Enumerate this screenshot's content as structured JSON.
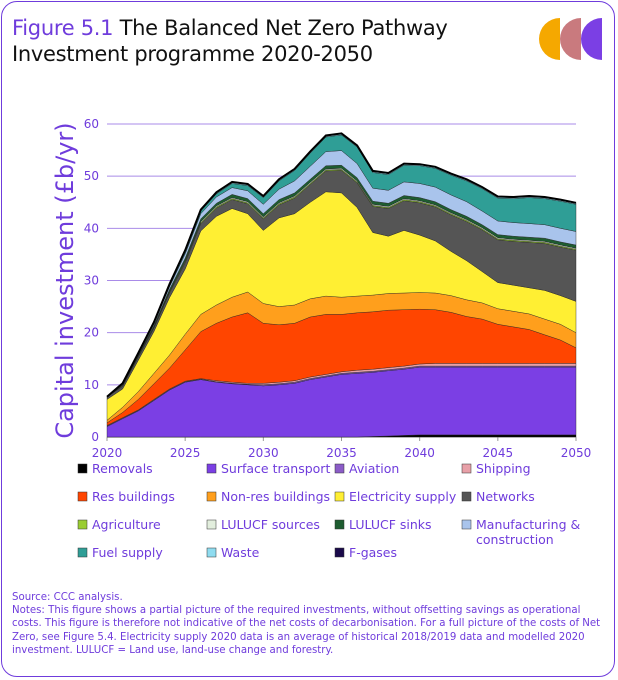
{
  "title": {
    "figure_label": "Figure 5.1",
    "line1": "The Balanced Net Zero Pathway",
    "line2": "Investment programme 2020-2050"
  },
  "source": {
    "line1": "Source: CCC analysis.",
    "line2": "Notes: This figure shows a partial picture of the required investments, without offsetting savings as operational costs. This figure is therefore not indicative of the net costs of decarbonisation. For a full picture of the costs of Net Zero, see Figure 5.4. Electricity supply 2020 data is an average of historical 2018/2019 data and modelled 2020 investment. LULUCF = Land use, land-use change and forestry."
  },
  "colors": {
    "accent": "#6f3cdc",
    "logo": [
      "#f5a800",
      "#c97a7e",
      "#7b3fe4"
    ]
  },
  "chart_data": {
    "type": "area",
    "stacked": true,
    "title": "The Balanced Net Zero Pathway Investment programme 2020-2050",
    "xlabel": "",
    "ylabel": "Capital investment (£b/yr)",
    "ylim": [
      0,
      60
    ],
    "yticks": [
      0,
      10,
      20,
      30,
      40,
      50,
      60
    ],
    "xticks": [
      2020,
      2025,
      2030,
      2035,
      2040,
      2045,
      2050
    ],
    "grid": true,
    "legend_position": "bottom",
    "x": [
      2020,
      2021,
      2022,
      2023,
      2024,
      2025,
      2026,
      2027,
      2028,
      2029,
      2030,
      2031,
      2032,
      2033,
      2034,
      2035,
      2036,
      2037,
      2038,
      2039,
      2040,
      2041,
      2042,
      2043,
      2044,
      2045,
      2046,
      2047,
      2048,
      2049,
      2050
    ],
    "series": [
      {
        "name": "Removals",
        "color": "#000000",
        "values": [
          0,
          0,
          0,
          0,
          0,
          0,
          0,
          0,
          0,
          0,
          0,
          0,
          0,
          0,
          0,
          0,
          0,
          0.1,
          0.2,
          0.3,
          0.4,
          0.4,
          0.4,
          0.4,
          0.4,
          0.4,
          0.4,
          0.4,
          0.4,
          0.4,
          0.4
        ]
      },
      {
        "name": "Surface transport",
        "color": "#7b3fe4",
        "values": [
          2,
          3.5,
          5,
          7,
          9,
          10.5,
          11,
          10.5,
          10.2,
          10,
          9.8,
          10,
          10.3,
          11,
          11.5,
          12,
          12.2,
          12.3,
          12.5,
          12.7,
          13,
          13,
          13,
          13,
          13,
          13,
          13,
          13,
          13,
          13,
          13
        ]
      },
      {
        "name": "Aviation",
        "color": "#8b5cc7",
        "values": [
          0.1,
          0.1,
          0.1,
          0.1,
          0.1,
          0.1,
          0.1,
          0.1,
          0.1,
          0.1,
          0.2,
          0.2,
          0.2,
          0.2,
          0.2,
          0.2,
          0.2,
          0.2,
          0.2,
          0.2,
          0.2,
          0.2,
          0.2,
          0.2,
          0.2,
          0.2,
          0.2,
          0.2,
          0.2,
          0.2,
          0.2
        ]
      },
      {
        "name": "Shipping",
        "color": "#e8a0a8",
        "values": [
          0.1,
          0.1,
          0.1,
          0.1,
          0.1,
          0.1,
          0.1,
          0.2,
          0.2,
          0.2,
          0.3,
          0.3,
          0.3,
          0.3,
          0.3,
          0.3,
          0.4,
          0.4,
          0.4,
          0.4,
          0.4,
          0.5,
          0.5,
          0.5,
          0.5,
          0.5,
          0.5,
          0.5,
          0.5,
          0.5,
          0.5
        ]
      },
      {
        "name": "Res buildings",
        "color": "#ff4500",
        "values": [
          0.5,
          1,
          2,
          3,
          4,
          6,
          9,
          11,
          12.5,
          13.5,
          11.5,
          11,
          11,
          11.5,
          11.5,
          11,
          11,
          11,
          11,
          10.8,
          10.5,
          10.3,
          9.8,
          9,
          8.5,
          7.5,
          7,
          6.5,
          5.5,
          4.5,
          3
        ]
      },
      {
        "name": "Non-res buildings",
        "color": "#ff9f1c",
        "values": [
          0.5,
          1,
          1.5,
          2,
          2.5,
          3,
          3.3,
          3.5,
          3.8,
          4,
          3.8,
          3.5,
          3.5,
          3.5,
          3.5,
          3.3,
          3.2,
          3.2,
          3.2,
          3.2,
          3.2,
          3.2,
          3.2,
          3.2,
          3.1,
          3,
          3,
          3,
          3,
          3,
          2.9
        ]
      },
      {
        "name": "Electricity supply",
        "color": "#ffef33",
        "values": [
          4,
          3.5,
          6,
          8,
          11,
          12.5,
          16,
          17,
          17,
          15,
          14,
          17,
          17.5,
          18.5,
          20,
          20,
          17,
          12,
          11,
          12,
          11,
          10,
          8.5,
          7.5,
          6,
          5,
          5,
          5,
          5.5,
          5.5,
          6
        ]
      },
      {
        "name": "Networks",
        "color": "#555555",
        "values": [
          0.5,
          0.5,
          0.6,
          0.7,
          0.9,
          1.2,
          1.4,
          1.6,
          1.7,
          1.9,
          2.2,
          2.5,
          3,
          3.4,
          4,
          4.3,
          4.7,
          5,
          5.3,
          5.7,
          6.2,
          6.5,
          7,
          7.5,
          8,
          8.2,
          8.4,
          8.7,
          9,
          9.3,
          9.8
        ]
      },
      {
        "name": "Agriculture",
        "color": "#9acd32",
        "values": [
          0,
          0.1,
          0.1,
          0.1,
          0.2,
          0.2,
          0.2,
          0.2,
          0.2,
          0.2,
          0.2,
          0.2,
          0.2,
          0.2,
          0.2,
          0.2,
          0.2,
          0.2,
          0.2,
          0.2,
          0.2,
          0.2,
          0.2,
          0.2,
          0.2,
          0.2,
          0.2,
          0.2,
          0.2,
          0.2,
          0.2
        ]
      },
      {
        "name": "LULUCF sources",
        "color": "#e2eedd",
        "values": [
          0,
          0.1,
          0.1,
          0.1,
          0.1,
          0.2,
          0.2,
          0.2,
          0.2,
          0.2,
          0.2,
          0.2,
          0.2,
          0.2,
          0.2,
          0.2,
          0.2,
          0.2,
          0.2,
          0.2,
          0.2,
          0.2,
          0.2,
          0.2,
          0.2,
          0.2,
          0.2,
          0.2,
          0.2,
          0.2,
          0.2
        ]
      },
      {
        "name": "LULUCF sinks",
        "color": "#1e5c30",
        "values": [
          0,
          0.1,
          0.2,
          0.3,
          0.4,
          0.5,
          0.5,
          0.5,
          0.6,
          0.6,
          0.6,
          0.6,
          0.6,
          0.6,
          0.6,
          0.6,
          0.6,
          0.6,
          0.6,
          0.6,
          0.6,
          0.6,
          0.6,
          0.6,
          0.6,
          0.6,
          0.6,
          0.6,
          0.6,
          0.6,
          0.6
        ]
      },
      {
        "name": "Manufacturing & construction",
        "color": "#a9c4ec",
        "values": [
          0,
          0.1,
          0.2,
          0.3,
          0.5,
          0.8,
          1,
          1.2,
          1.3,
          1.5,
          1.8,
          2,
          2.3,
          2.5,
          2.7,
          2.8,
          2.7,
          2.5,
          2.5,
          2.6,
          2.7,
          2.8,
          2.8,
          2.8,
          2.6,
          2.6,
          2.6,
          2.6,
          2.6,
          2.6,
          2.6
        ]
      },
      {
        "name": "Fuel supply",
        "color": "#2f9e96",
        "values": [
          0,
          0.1,
          0.1,
          0.2,
          0.3,
          0.4,
          0.5,
          0.6,
          0.8,
          1,
          1.3,
          1.6,
          2,
          2.5,
          2.8,
          3,
          3.2,
          3,
          3,
          3.2,
          3.4,
          3.6,
          3.8,
          4,
          4.3,
          4.4,
          4.6,
          5,
          5,
          5.2,
          5.2
        ]
      },
      {
        "name": "Waste",
        "color": "#8fdcf0",
        "values": [
          0,
          0.1,
          0.1,
          0.1,
          0.1,
          0.2,
          0.2,
          0.2,
          0.2,
          0.2,
          0.2,
          0.2,
          0.2,
          0.2,
          0.2,
          0.2,
          0.2,
          0.2,
          0.2,
          0.2,
          0.2,
          0.2,
          0.2,
          0.2,
          0.2,
          0.2,
          0.2,
          0.2,
          0.2,
          0.2,
          0.2
        ]
      },
      {
        "name": "F-gases",
        "color": "#1a0a4a",
        "values": [
          0,
          0,
          0,
          0,
          0.1,
          0.1,
          0.1,
          0.1,
          0.1,
          0.1,
          0.1,
          0.1,
          0.1,
          0.1,
          0.1,
          0.1,
          0.1,
          0.1,
          0.1,
          0.1,
          0.1,
          0.1,
          0.1,
          0.1,
          0.1,
          0.1,
          0.1,
          0.1,
          0.1,
          0.1,
          0.1
        ]
      }
    ]
  }
}
